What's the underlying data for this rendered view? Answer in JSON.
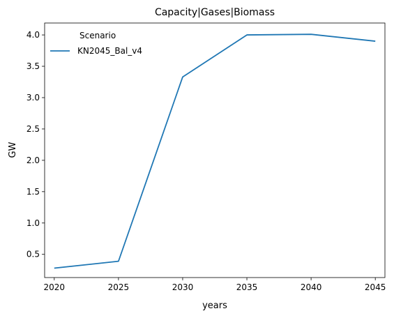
{
  "chart_data": {
    "type": "line",
    "title": "Capacity|Gases|Biomass",
    "xlabel": "years",
    "ylabel": "GW",
    "x": [
      2020,
      2025,
      2030,
      2035,
      2040,
      2045
    ],
    "xticks": [
      "2020",
      "2025",
      "2030",
      "2035",
      "2040",
      "2045"
    ],
    "yticks": [
      "0.5",
      "1.0",
      "1.5",
      "2.0",
      "2.5",
      "3.0",
      "3.5",
      "4.0"
    ],
    "ytick_values": [
      0.5,
      1.0,
      1.5,
      2.0,
      2.5,
      3.0,
      3.5,
      4.0
    ],
    "xlim": [
      2019.25,
      2045.75
    ],
    "ylim": [
      0.13,
      4.19
    ],
    "grid": false,
    "legend": {
      "title": "Scenario",
      "placement": "top-left"
    },
    "series": [
      {
        "name": "KN2045_Bal_v4",
        "color": "#1f77b4",
        "values": [
          0.28,
          0.39,
          3.33,
          4.0,
          4.01,
          3.9
        ]
      }
    ]
  }
}
